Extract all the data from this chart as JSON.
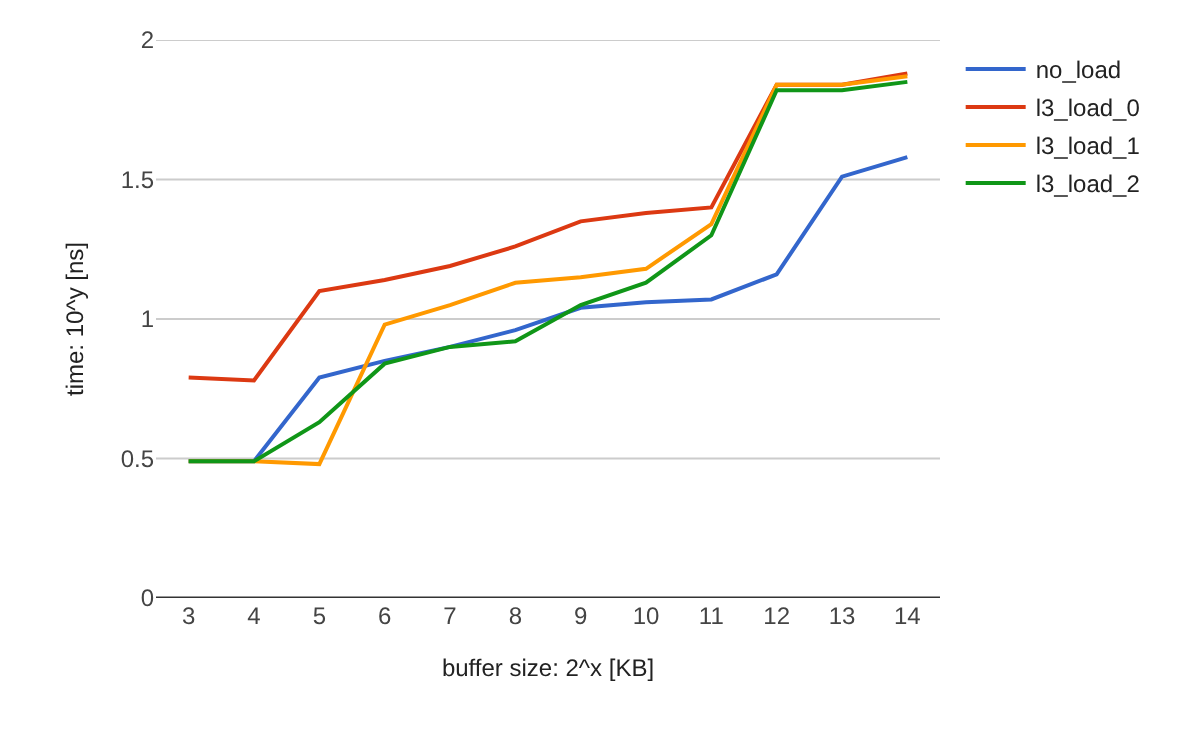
{
  "chart_data": {
    "type": "line",
    "xlabel": "buffer size: 2^x [KB]",
    "ylabel": "time: 10^y [ns]",
    "categories": [
      "3",
      "4",
      "5",
      "6",
      "7",
      "8",
      "9",
      "10",
      "11",
      "12",
      "13",
      "14"
    ],
    "series": [
      {
        "name": "no_load",
        "color": "#3366cc",
        "values": [
          0.49,
          0.49,
          0.79,
          0.85,
          0.9,
          0.96,
          1.04,
          1.06,
          1.07,
          1.16,
          1.51,
          1.58
        ]
      },
      {
        "name": "l3_load_0",
        "color": "#dc3912",
        "values": [
          0.79,
          0.78,
          1.1,
          1.14,
          1.19,
          1.26,
          1.35,
          1.38,
          1.4,
          1.84,
          1.84,
          1.88
        ]
      },
      {
        "name": "l3_load_1",
        "color": "#ff9900",
        "values": [
          0.49,
          0.49,
          0.48,
          0.98,
          1.05,
          1.13,
          1.15,
          1.18,
          1.34,
          1.84,
          1.84,
          1.87
        ]
      },
      {
        "name": "l3_load_2",
        "color": "#109618",
        "values": [
          0.49,
          0.49,
          0.63,
          0.84,
          0.9,
          0.92,
          1.05,
          1.13,
          1.3,
          1.82,
          1.82,
          1.85
        ]
      }
    ],
    "ylim": [
      0,
      2
    ],
    "yticks": [
      0,
      0.5,
      1,
      1.5,
      2
    ],
    "grid": "y",
    "legend": "top right",
    "marker": "none",
    "line_style": "solid"
  }
}
